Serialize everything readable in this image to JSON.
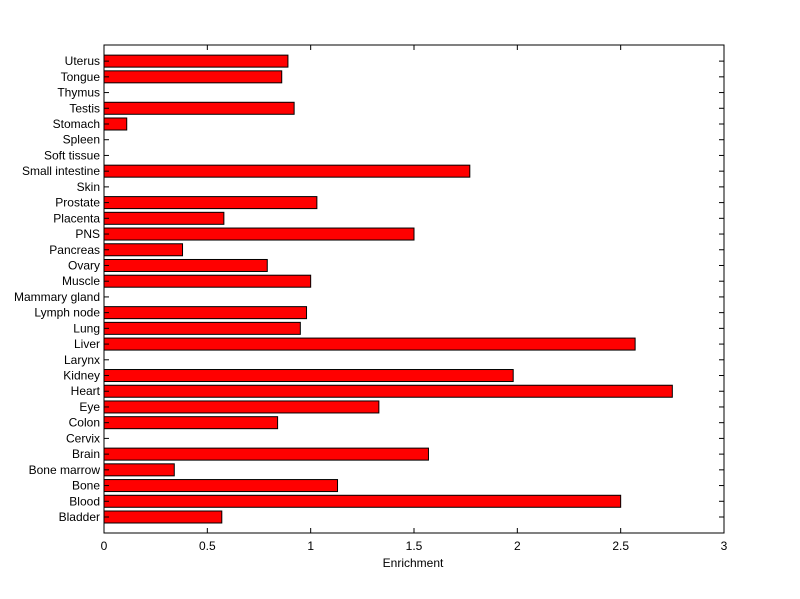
{
  "chart_data": {
    "type": "bar",
    "orientation": "horizontal",
    "title": "",
    "xlabel": "Enrichment",
    "ylabel": "",
    "xlim": [
      0,
      3
    ],
    "xticks": [
      "0",
      "0.5",
      "1",
      "1.5",
      "2",
      "2.5",
      "3"
    ],
    "grid": false,
    "legend": "none",
    "bar_color": "#ff0000",
    "categories": [
      "Bladder",
      "Blood",
      "Bone",
      "Bone marrow",
      "Brain",
      "Cervix",
      "Colon",
      "Eye",
      "Heart",
      "Kidney",
      "Larynx",
      "Liver",
      "Lung",
      "Lymph node",
      "Mammary gland",
      "Muscle",
      "Ovary",
      "Pancreas",
      "PNS",
      "Placenta",
      "Prostate",
      "Skin",
      "Small intestine",
      "Soft tissue",
      "Spleen",
      "Stomach",
      "Testis",
      "Thymus",
      "Tongue",
      "Uterus"
    ],
    "values": [
      0.57,
      2.5,
      1.13,
      0.34,
      1.57,
      0,
      0.84,
      1.33,
      2.75,
      1.98,
      0,
      2.57,
      0.95,
      0.98,
      0,
      1.0,
      0.79,
      0.38,
      1.5,
      0.58,
      1.03,
      0,
      1.77,
      0,
      0,
      0.11,
      0.92,
      0,
      0.86,
      0.89
    ]
  }
}
